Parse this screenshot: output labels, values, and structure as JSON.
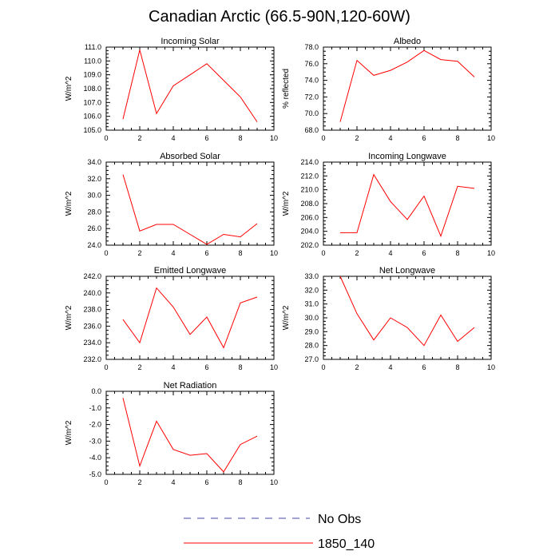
{
  "figure": {
    "title": "Canadian Arctic (66.5-90N,120-60W)"
  },
  "chart_data": [
    {
      "type": "line",
      "title": "Incoming Solar",
      "ylabel": "W/m^2",
      "xlim": [
        0,
        10
      ],
      "ylim": [
        105,
        111
      ],
      "xticks": [
        0,
        2,
        4,
        6,
        8,
        10
      ],
      "yticks": [
        "105.0",
        "106.0",
        "107.0",
        "108.0",
        "109.0",
        "110.0",
        "111.0"
      ],
      "x": [
        1,
        2,
        3,
        4,
        5,
        6,
        7,
        8,
        9
      ],
      "series": [
        {
          "name": "1850_140",
          "values": [
            105.8,
            110.8,
            106.2,
            108.2,
            109.0,
            109.8,
            108.6,
            107.4,
            105.6
          ]
        }
      ]
    },
    {
      "type": "line",
      "title": "Albedo",
      "ylabel": "% reflected",
      "xlim": [
        0,
        10
      ],
      "ylim": [
        68,
        78
      ],
      "xticks": [
        0,
        2,
        4,
        6,
        8,
        10
      ],
      "yticks": [
        "68.0",
        "70.0",
        "72.0",
        "74.0",
        "76.0",
        "78.0"
      ],
      "x": [
        1,
        2,
        3,
        4,
        5,
        6,
        7,
        8,
        9
      ],
      "series": [
        {
          "name": "1850_140",
          "values": [
            69.0,
            76.4,
            74.6,
            75.2,
            76.2,
            77.6,
            76.5,
            76.3,
            74.4
          ]
        }
      ]
    },
    {
      "type": "line",
      "title": "Absorbed Solar",
      "ylabel": "W/m^2",
      "xlim": [
        0,
        10
      ],
      "ylim": [
        24,
        34
      ],
      "xticks": [
        0,
        2,
        4,
        6,
        8,
        10
      ],
      "yticks": [
        "24.0",
        "26.0",
        "28.0",
        "30.0",
        "32.0",
        "34.0"
      ],
      "x": [
        1,
        2,
        3,
        4,
        5,
        6,
        7,
        8,
        9
      ],
      "series": [
        {
          "name": "1850_140",
          "values": [
            32.5,
            25.7,
            26.5,
            26.5,
            25.3,
            24.1,
            25.3,
            25.0,
            26.6
          ]
        }
      ]
    },
    {
      "type": "line",
      "title": "Incoming Longwave",
      "ylabel": "W/m^2",
      "xlim": [
        0,
        10
      ],
      "ylim": [
        202,
        214
      ],
      "xticks": [
        0,
        2,
        4,
        6,
        8,
        10
      ],
      "yticks": [
        "202.0",
        "204.0",
        "206.0",
        "208.0",
        "210.0",
        "212.0",
        "214.0"
      ],
      "x": [
        1,
        2,
        3,
        4,
        5,
        6,
        7,
        8,
        9
      ],
      "series": [
        {
          "name": "1850_140",
          "values": [
            203.8,
            203.8,
            212.2,
            208.3,
            205.7,
            209.1,
            203.3,
            210.5,
            210.2
          ]
        }
      ]
    },
    {
      "type": "line",
      "title": "Emitted Longwave",
      "ylabel": "W/m^2",
      "xlim": [
        0,
        10
      ],
      "ylim": [
        232,
        242
      ],
      "xticks": [
        0,
        2,
        4,
        6,
        8,
        10
      ],
      "yticks": [
        "232.0",
        "234.0",
        "236.0",
        "238.0",
        "240.0",
        "242.0"
      ],
      "x": [
        1,
        2,
        3,
        4,
        5,
        6,
        7,
        8,
        9
      ],
      "series": [
        {
          "name": "1850_140",
          "values": [
            236.8,
            234.0,
            240.6,
            238.3,
            235.0,
            237.1,
            233.4,
            238.8,
            239.5
          ]
        }
      ]
    },
    {
      "type": "line",
      "title": "Net Longwave",
      "ylabel": "W/m^2",
      "xlim": [
        0,
        10
      ],
      "ylim": [
        27,
        33
      ],
      "xticks": [
        0,
        2,
        4,
        6,
        8,
        10
      ],
      "yticks": [
        "27.0",
        "28.0",
        "29.0",
        "30.0",
        "31.0",
        "32.0",
        "33.0"
      ],
      "x": [
        1,
        2,
        3,
        4,
        5,
        6,
        7,
        8,
        9
      ],
      "series": [
        {
          "name": "1850_140",
          "values": [
            33.0,
            30.3,
            28.4,
            30.0,
            29.3,
            28.0,
            30.2,
            28.3,
            29.3
          ]
        }
      ]
    },
    {
      "type": "line",
      "title": "Net Radiation",
      "ylabel": "W/m^2",
      "xlim": [
        0,
        10
      ],
      "ylim": [
        -5,
        0
      ],
      "xticks": [
        0,
        2,
        4,
        6,
        8,
        10
      ],
      "yticks": [
        "-5.0",
        "-4.0",
        "-3.0",
        "-2.0",
        "-1.0",
        "0.0"
      ],
      "x": [
        1,
        2,
        3,
        4,
        5,
        6,
        7,
        8,
        9
      ],
      "series": [
        {
          "name": "1850_140",
          "values": [
            -0.4,
            -4.5,
            -1.8,
            -3.5,
            -3.85,
            -3.75,
            -4.85,
            -3.2,
            -2.7
          ]
        }
      ]
    }
  ],
  "legend": {
    "placement": "bottom-center",
    "entries": [
      {
        "label": "No Obs",
        "color": "#4444aa",
        "style": "dashed"
      },
      {
        "label": "1850_140",
        "color": "#ff0000",
        "style": "solid"
      }
    ]
  },
  "colors": {
    "series_line": "#ff0000",
    "axis": "#000000",
    "background": "#ffffff"
  }
}
